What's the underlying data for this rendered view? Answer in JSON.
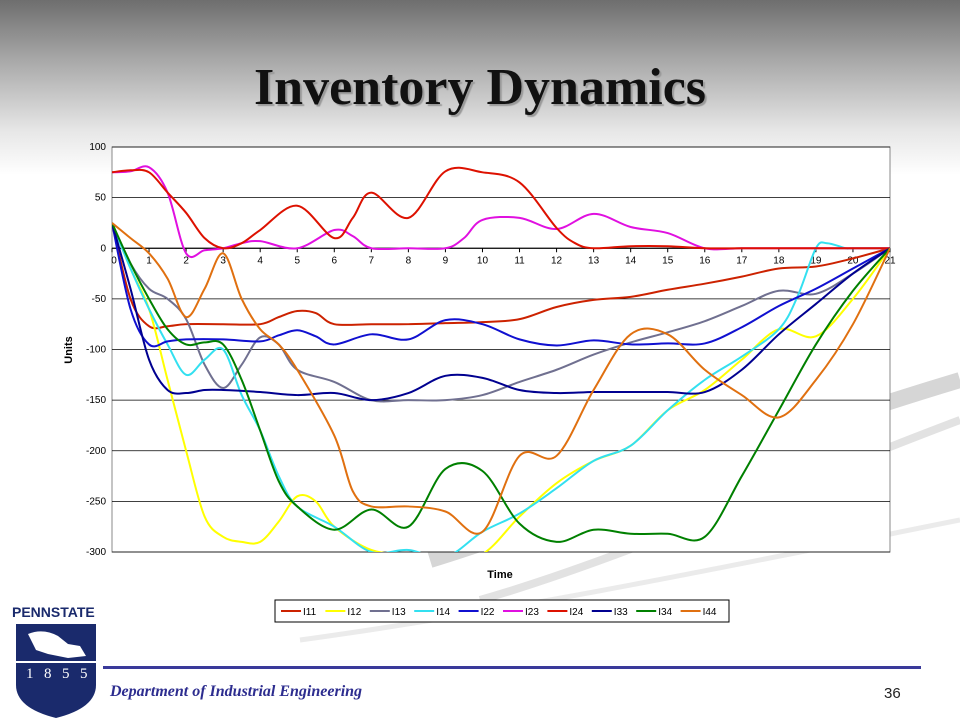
{
  "slide": {
    "title": "Inventory Dynamics",
    "department": "Department of Industrial Engineering",
    "page_number": "36",
    "logo_text": "PENNSTATE",
    "logo_year": [
      "1",
      "8",
      "5",
      "5"
    ]
  },
  "chart_data": {
    "type": "line",
    "xlabel": "Time",
    "ylabel": "Units",
    "xlim": [
      0,
      21
    ],
    "ylim": [
      -300,
      100
    ],
    "x_ticks": [
      0,
      1,
      2,
      3,
      4,
      5,
      6,
      7,
      8,
      9,
      10,
      11,
      12,
      13,
      14,
      15,
      16,
      17,
      18,
      19,
      20,
      21
    ],
    "y_ticks": [
      100,
      50,
      0,
      -50,
      -100,
      -150,
      -200,
      -250,
      -300
    ],
    "grid": "horizontal",
    "legend_position": "bottom",
    "series": [
      {
        "name": "I11",
        "color": "#cc2200",
        "points": [
          [
            0,
            25
          ],
          [
            0.5,
            -50
          ],
          [
            1,
            -77
          ],
          [
            1.5,
            -77
          ],
          [
            2,
            -75
          ],
          [
            3,
            -75
          ],
          [
            4,
            -75
          ],
          [
            4.5,
            -68
          ],
          [
            5,
            -62
          ],
          [
            5.5,
            -64
          ],
          [
            6,
            -75
          ],
          [
            7,
            -75
          ],
          [
            8,
            -75
          ],
          [
            9,
            -74
          ],
          [
            10,
            -73
          ],
          [
            11,
            -70
          ],
          [
            12,
            -58
          ],
          [
            13,
            -51
          ],
          [
            14,
            -48
          ],
          [
            15,
            -41
          ],
          [
            16,
            -35
          ],
          [
            17,
            -28
          ],
          [
            18,
            -20
          ],
          [
            19,
            -18
          ],
          [
            20,
            -10
          ],
          [
            21,
            0
          ]
        ]
      },
      {
        "name": "I12",
        "color": "#ffff00",
        "points": [
          [
            0,
            25
          ],
          [
            0.5,
            -20
          ],
          [
            1,
            -60
          ],
          [
            1.5,
            -130
          ],
          [
            2,
            -200
          ],
          [
            2.5,
            -265
          ],
          [
            3,
            -285
          ],
          [
            3.5,
            -290
          ],
          [
            4,
            -290
          ],
          [
            4.5,
            -270
          ],
          [
            5,
            -245
          ],
          [
            5.5,
            -250
          ],
          [
            6,
            -275
          ],
          [
            7,
            -298
          ],
          [
            8,
            -302
          ],
          [
            9,
            -305
          ],
          [
            10,
            -302
          ],
          [
            11,
            -265
          ],
          [
            12,
            -232
          ],
          [
            13,
            -210
          ],
          [
            14,
            -195
          ],
          [
            15,
            -160
          ],
          [
            16,
            -140
          ],
          [
            17,
            -110
          ],
          [
            18,
            -80
          ],
          [
            19,
            -87
          ],
          [
            20,
            -50
          ],
          [
            21,
            0
          ]
        ]
      },
      {
        "name": "I13",
        "color": "#707090",
        "points": [
          [
            0,
            25
          ],
          [
            0.5,
            -15
          ],
          [
            1,
            -40
          ],
          [
            1.5,
            -50
          ],
          [
            2,
            -70
          ],
          [
            2.5,
            -115
          ],
          [
            3,
            -138
          ],
          [
            3.5,
            -115
          ],
          [
            4,
            -88
          ],
          [
            4.5,
            -95
          ],
          [
            5,
            -120
          ],
          [
            6,
            -132
          ],
          [
            7,
            -150
          ],
          [
            8,
            -150
          ],
          [
            9,
            -150
          ],
          [
            10,
            -145
          ],
          [
            11,
            -132
          ],
          [
            12,
            -120
          ],
          [
            13,
            -105
          ],
          [
            14,
            -93
          ],
          [
            15,
            -83
          ],
          [
            16,
            -72
          ],
          [
            17,
            -57
          ],
          [
            18,
            -42
          ],
          [
            19,
            -45
          ],
          [
            20,
            -25
          ],
          [
            21,
            0
          ]
        ]
      },
      {
        "name": "I14",
        "color": "#33e0f0",
        "points": [
          [
            0,
            25
          ],
          [
            0.5,
            -20
          ],
          [
            1,
            -60
          ],
          [
            1.5,
            -95
          ],
          [
            2,
            -125
          ],
          [
            2.5,
            -110
          ],
          [
            3,
            -100
          ],
          [
            3.5,
            -145
          ],
          [
            4,
            -180
          ],
          [
            4.5,
            -225
          ],
          [
            5,
            -255
          ],
          [
            6,
            -275
          ],
          [
            7,
            -300
          ],
          [
            8,
            -298
          ],
          [
            9,
            -305
          ],
          [
            10,
            -280
          ],
          [
            11,
            -262
          ],
          [
            12,
            -237
          ],
          [
            13,
            -210
          ],
          [
            14,
            -195
          ],
          [
            15,
            -160
          ],
          [
            16,
            -130
          ],
          [
            17,
            -107
          ],
          [
            18,
            -80
          ],
          [
            18.5,
            -48
          ],
          [
            19,
            0
          ],
          [
            19.3,
            5
          ],
          [
            19.8,
            0
          ],
          [
            20,
            0
          ],
          [
            21,
            0
          ]
        ]
      },
      {
        "name": "I22",
        "color": "#1010d0",
        "points": [
          [
            0,
            25
          ],
          [
            0.5,
            -60
          ],
          [
            1,
            -95
          ],
          [
            1.5,
            -92
          ],
          [
            2,
            -90
          ],
          [
            3,
            -90
          ],
          [
            4,
            -92
          ],
          [
            4.5,
            -86
          ],
          [
            5,
            -81
          ],
          [
            5.5,
            -87
          ],
          [
            6,
            -95
          ],
          [
            7,
            -85
          ],
          [
            8,
            -90
          ],
          [
            9,
            -71
          ],
          [
            10,
            -75
          ],
          [
            11,
            -90
          ],
          [
            12,
            -96
          ],
          [
            13,
            -91
          ],
          [
            14,
            -95
          ],
          [
            15,
            -94
          ],
          [
            16,
            -94
          ],
          [
            17,
            -78
          ],
          [
            18,
            -57
          ],
          [
            19,
            -40
          ],
          [
            20,
            -20
          ],
          [
            21,
            0
          ]
        ]
      },
      {
        "name": "I23",
        "color": "#e010e0",
        "points": [
          [
            0,
            75
          ],
          [
            0.5,
            76
          ],
          [
            1,
            80
          ],
          [
            1.5,
            55
          ],
          [
            2,
            -5
          ],
          [
            2.5,
            -2
          ],
          [
            3,
            0
          ],
          [
            3.5,
            5
          ],
          [
            4,
            7
          ],
          [
            5,
            0
          ],
          [
            6,
            18
          ],
          [
            6.5,
            12
          ],
          [
            7,
            0
          ],
          [
            8,
            0
          ],
          [
            9,
            0
          ],
          [
            9.5,
            10
          ],
          [
            10,
            28
          ],
          [
            11,
            30
          ],
          [
            12,
            19
          ],
          [
            13,
            34
          ],
          [
            14,
            21
          ],
          [
            15,
            15
          ],
          [
            16,
            0
          ],
          [
            17,
            0
          ],
          [
            18,
            0
          ],
          [
            19,
            0
          ],
          [
            20,
            0
          ],
          [
            21,
            0
          ]
        ]
      },
      {
        "name": "I24",
        "color": "#dd1100",
        "points": [
          [
            0,
            75
          ],
          [
            0.5,
            77
          ],
          [
            1,
            75
          ],
          [
            1.5,
            55
          ],
          [
            2,
            35
          ],
          [
            2.5,
            10
          ],
          [
            3,
            0
          ],
          [
            3.5,
            5
          ],
          [
            4,
            18
          ],
          [
            5,
            42
          ],
          [
            6,
            10
          ],
          [
            6.5,
            30
          ],
          [
            7,
            55
          ],
          [
            8,
            30
          ],
          [
            9,
            76
          ],
          [
            10,
            75
          ],
          [
            11,
            65
          ],
          [
            12,
            20
          ],
          [
            12.5,
            5
          ],
          [
            13,
            0
          ],
          [
            14,
            2
          ],
          [
            15,
            2
          ],
          [
            16,
            0
          ],
          [
            17,
            0
          ],
          [
            18,
            0
          ],
          [
            19,
            0
          ],
          [
            20,
            0
          ],
          [
            21,
            0
          ]
        ]
      },
      {
        "name": "I33",
        "color": "#000090",
        "points": [
          [
            0,
            25
          ],
          [
            0.5,
            -40
          ],
          [
            1,
            -110
          ],
          [
            1.5,
            -140
          ],
          [
            2,
            -143
          ],
          [
            2.5,
            -140
          ],
          [
            3,
            -140
          ],
          [
            4,
            -142
          ],
          [
            5,
            -145
          ],
          [
            6,
            -143
          ],
          [
            7,
            -150
          ],
          [
            8,
            -143
          ],
          [
            9,
            -126
          ],
          [
            10,
            -128
          ],
          [
            11,
            -140
          ],
          [
            12,
            -143
          ],
          [
            13,
            -142
          ],
          [
            14,
            -142
          ],
          [
            15,
            -142
          ],
          [
            16,
            -142
          ],
          [
            17,
            -120
          ],
          [
            18,
            -85
          ],
          [
            19,
            -55
          ],
          [
            20,
            -25
          ],
          [
            21,
            0
          ]
        ]
      },
      {
        "name": "I34",
        "color": "#008000",
        "points": [
          [
            0,
            25
          ],
          [
            0.5,
            -15
          ],
          [
            1,
            -50
          ],
          [
            1.5,
            -80
          ],
          [
            2,
            -95
          ],
          [
            2.5,
            -93
          ],
          [
            3,
            -95
          ],
          [
            3.5,
            -130
          ],
          [
            4,
            -180
          ],
          [
            4.5,
            -230
          ],
          [
            5,
            -255
          ],
          [
            6,
            -278
          ],
          [
            7,
            -258
          ],
          [
            8,
            -275
          ],
          [
            9,
            -218
          ],
          [
            10,
            -220
          ],
          [
            11,
            -272
          ],
          [
            12,
            -290
          ],
          [
            13,
            -278
          ],
          [
            14,
            -282
          ],
          [
            15,
            -282
          ],
          [
            16,
            -285
          ],
          [
            17,
            -225
          ],
          [
            18,
            -160
          ],
          [
            19,
            -95
          ],
          [
            20,
            -42
          ],
          [
            21,
            0
          ]
        ]
      },
      {
        "name": "I44",
        "color": "#e07010",
        "points": [
          [
            0,
            25
          ],
          [
            0.5,
            10
          ],
          [
            1,
            -5
          ],
          [
            1.5,
            -30
          ],
          [
            2,
            -68
          ],
          [
            2.5,
            -40
          ],
          [
            3,
            -5
          ],
          [
            3.5,
            -50
          ],
          [
            4,
            -80
          ],
          [
            4.5,
            -95
          ],
          [
            5,
            -120
          ],
          [
            6,
            -185
          ],
          [
            6.5,
            -240
          ],
          [
            7,
            -255
          ],
          [
            8,
            -255
          ],
          [
            9,
            -260
          ],
          [
            10,
            -280
          ],
          [
            11,
            -205
          ],
          [
            12,
            -205
          ],
          [
            13,
            -140
          ],
          [
            14,
            -85
          ],
          [
            15,
            -85
          ],
          [
            16,
            -120
          ],
          [
            17,
            -145
          ],
          [
            18,
            -167
          ],
          [
            19,
            -130
          ],
          [
            20,
            -75
          ],
          [
            21,
            0
          ]
        ]
      }
    ]
  }
}
